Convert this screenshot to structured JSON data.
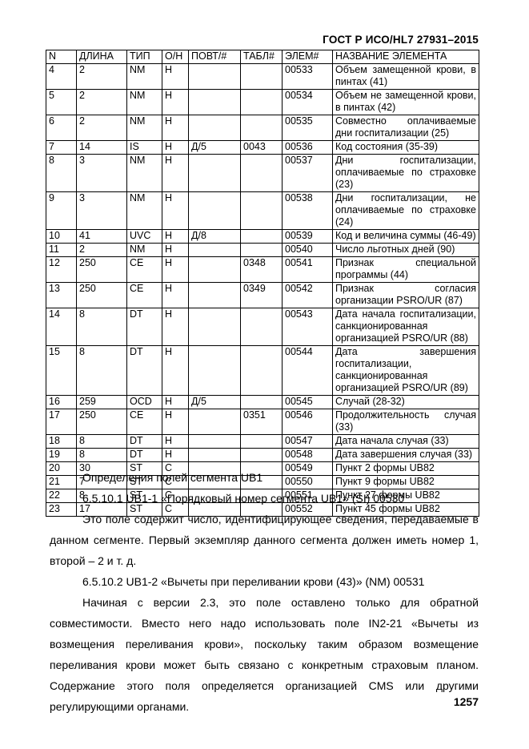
{
  "header": {
    "doc_title": "ГОСТ Р ИСО/HL7 27931–2015"
  },
  "table": {
    "columns": [
      "N",
      "ДЛИНА",
      "ТИП",
      "О/Н",
      "ПОВТ/#",
      "ТАБЛ#",
      "ЭЛЕМ#",
      "НАЗВАНИЕ ЭЛЕМЕНТА"
    ],
    "rows": [
      [
        "4",
        "2",
        "NM",
        "Н",
        "",
        "",
        "00533",
        "Объем замещенной крови, в пинтах (41)"
      ],
      [
        "5",
        "2",
        "NM",
        "Н",
        "",
        "",
        "00534",
        "Объем не замещенной крови, в пинтах (42)"
      ],
      [
        "6",
        "2",
        "NM",
        "Н",
        "",
        "",
        "00535",
        "Совместно оплачиваемые дни госпитализации (25)"
      ],
      [
        "7",
        "14",
        "IS",
        "Н",
        "Д/5",
        "0043",
        "00536",
        "Код состояния (35-39)"
      ],
      [
        "8",
        "3",
        "NM",
        "Н",
        "",
        "",
        "00537",
        "Дни госпитализации, оплачиваемые по страховке (23)"
      ],
      [
        "9",
        "3",
        "NM",
        "Н",
        "",
        "",
        "00538",
        "Дни госпитализации, не оплачиваемые по страховке (24)"
      ],
      [
        "10",
        "41",
        "UVC",
        "Н",
        "Д/8",
        "",
        "00539",
        "Код и величина суммы (46-49)"
      ],
      [
        "11",
        "2",
        "NM",
        "Н",
        "",
        "",
        "00540",
        "Число льготных дней (90)"
      ],
      [
        "12",
        "250",
        "CE",
        "Н",
        "",
        "0348",
        "00541",
        "Признак специальной программы (44)"
      ],
      [
        "13",
        "250",
        "CE",
        "Н",
        "",
        "0349",
        "00542",
        "Признак согласия организации PSRO/UR (87)"
      ],
      [
        "14",
        "8",
        "DT",
        "Н",
        "",
        "",
        "00543",
        "Дата начала госпитализации, санкционированная организацией PSRO/UR (88)"
      ],
      [
        "15",
        "8",
        "DT",
        "Н",
        "",
        "",
        "00544",
        "Дата завершения госпитализации, санкционированная организацией PSRO/UR (89)"
      ],
      [
        "16",
        "259",
        "OCD",
        "Н",
        "Д/5",
        "",
        "00545",
        "Случай (28-32)"
      ],
      [
        "17",
        "250",
        "CE",
        "Н",
        "",
        "0351",
        "00546",
        "Продолжительность случая (33)"
      ],
      [
        "18",
        "8",
        "DT",
        "Н",
        "",
        "",
        "00547",
        "Дата начала случая (33)"
      ],
      [
        "19",
        "8",
        "DT",
        "Н",
        "",
        "",
        "00548",
        "Дата завершения случая (33)"
      ],
      [
        "20",
        "30",
        "ST",
        "С",
        "",
        "",
        "00549",
        "Пункт 2 формы UB82"
      ],
      [
        "21",
        "7",
        "ST",
        "С",
        "",
        "",
        "00550",
        "Пункт 9 формы UB82"
      ],
      [
        "22",
        "8",
        "ST",
        "С",
        "",
        "",
        "00551",
        "Пункт 27 формы UB82"
      ],
      [
        "23",
        "17",
        "ST",
        "С",
        "",
        "",
        "00552",
        "Пункт 45 формы UB82"
      ]
    ]
  },
  "body": {
    "paragraphs": [
      "Определения полей сегмента UB1",
      "6.5.10.1 UB1-1 «Порядковый номер сегмента UB1» (SI) 00530",
      "Это поле содержит число, идентифицирующее сведения, передаваемые в данном сегменте. Первый экземпляр данного сегмента должен иметь номер 1, второй – 2 и т. д.",
      "6.5.10.2 UB1-2 «Вычеты при переливании крови (43)» (NM) 00531",
      "Начиная с версии 2.3, это поле оставлено только для обратной совместимости. Вместо него надо использовать поле IN2-21 «Вычеты из возмещения переливания крови», поскольку таким образом возмещение переливания крови может быть связано с конкретным страховым планом. Содержание этого поля определяется организацией CMS или другими регулирующими органами."
    ]
  },
  "footer": {
    "page_number": "1257"
  }
}
